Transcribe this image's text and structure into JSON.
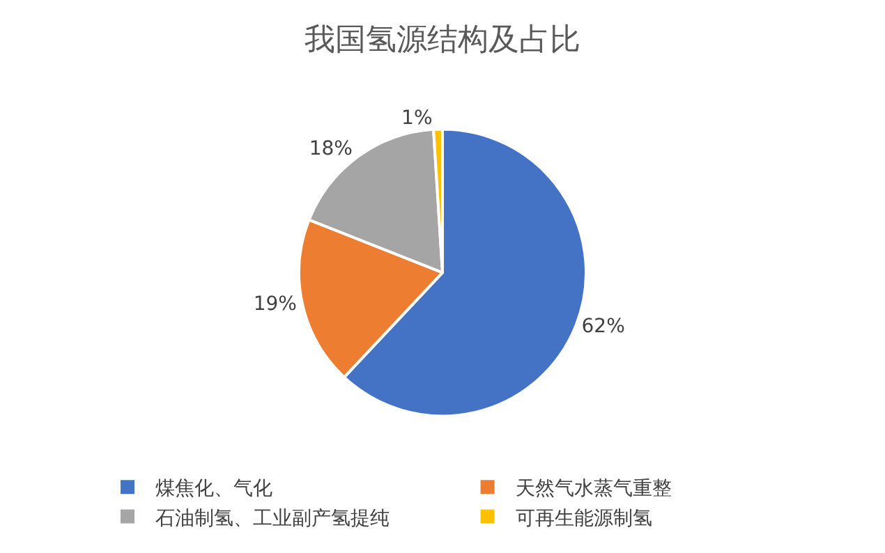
{
  "chart_data": {
    "type": "pie",
    "title": "我国氢源结构及占比",
    "categories": [
      "煤焦化、气化",
      "天然气水蒸气重整",
      "石油制氢、工业副产氢提纯",
      "可再生能源制氢"
    ],
    "values": [
      62,
      19,
      18,
      1
    ],
    "value_labels": [
      "62%",
      "19%",
      "18%",
      "1%"
    ],
    "colors": [
      "#4472c4",
      "#ed7d31",
      "#a5a5a5",
      "#ffc000"
    ],
    "legend": "bottom"
  }
}
